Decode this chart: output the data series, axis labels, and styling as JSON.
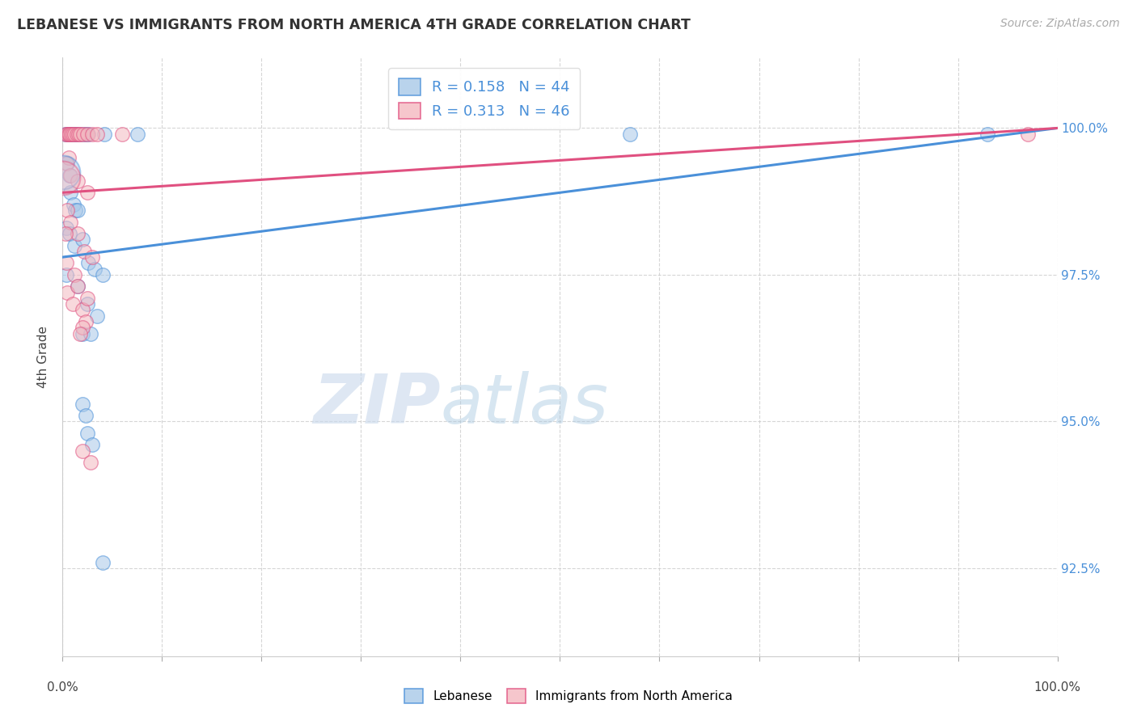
{
  "title": "LEBANESE VS IMMIGRANTS FROM NORTH AMERICA 4TH GRADE CORRELATION CHART",
  "source": "Source: ZipAtlas.com",
  "ylabel": "4th Grade",
  "right_yticks": [
    100.0,
    97.5,
    95.0,
    92.5
  ],
  "right_ytick_labels": [
    "100.0%",
    "97.5%",
    "95.0%",
    "92.5%"
  ],
  "xlim": [
    0.0,
    100.0
  ],
  "ylim": [
    91.0,
    101.2
  ],
  "blue_color": "#a8c8e8",
  "pink_color": "#f4b8c0",
  "blue_line_color": "#4a90d9",
  "pink_line_color": "#e05080",
  "legend_blue_r": "R = 0.158",
  "legend_blue_n": "N = 44",
  "legend_pink_r": "R = 0.313",
  "legend_pink_n": "N = 46",
  "watermark_zip": "ZIP",
  "watermark_atlas": "atlas",
  "blue_line_y_start": 97.8,
  "blue_line_y_end": 100.0,
  "pink_line_y_start": 98.9,
  "pink_line_y_end": 100.0,
  "blue_scatter": [
    [
      0.3,
      99.9
    ],
    [
      0.5,
      99.9
    ],
    [
      0.6,
      99.9
    ],
    [
      0.8,
      99.9
    ],
    [
      0.9,
      99.9
    ],
    [
      1.0,
      99.9
    ],
    [
      1.1,
      99.9
    ],
    [
      1.2,
      99.9
    ],
    [
      1.4,
      99.9
    ],
    [
      1.6,
      99.9
    ],
    [
      2.0,
      99.9
    ],
    [
      2.3,
      99.9
    ],
    [
      2.6,
      99.9
    ],
    [
      4.2,
      99.9
    ],
    [
      7.5,
      99.9
    ],
    [
      0.5,
      99.4
    ],
    [
      0.7,
      99.2
    ],
    [
      0.8,
      98.9
    ],
    [
      1.1,
      98.7
    ],
    [
      1.3,
      98.6
    ],
    [
      1.5,
      98.6
    ],
    [
      0.4,
      98.3
    ],
    [
      0.7,
      98.2
    ],
    [
      1.2,
      98.0
    ],
    [
      2.0,
      98.1
    ],
    [
      2.6,
      97.7
    ],
    [
      3.2,
      97.6
    ],
    [
      4.0,
      97.5
    ],
    [
      0.4,
      97.5
    ],
    [
      1.5,
      97.3
    ],
    [
      2.5,
      97.0
    ],
    [
      3.5,
      96.8
    ],
    [
      2.0,
      96.5
    ],
    [
      2.8,
      96.5
    ],
    [
      2.0,
      95.3
    ],
    [
      2.3,
      95.1
    ],
    [
      2.5,
      94.8
    ],
    [
      3.0,
      94.6
    ],
    [
      4.0,
      92.6
    ],
    [
      57.0,
      99.9
    ],
    [
      93.0,
      99.9
    ]
  ],
  "pink_scatter": [
    [
      0.3,
      99.9
    ],
    [
      0.5,
      99.9
    ],
    [
      0.6,
      99.9
    ],
    [
      0.7,
      99.9
    ],
    [
      0.9,
      99.9
    ],
    [
      1.0,
      99.9
    ],
    [
      1.2,
      99.9
    ],
    [
      1.4,
      99.9
    ],
    [
      1.6,
      99.9
    ],
    [
      1.8,
      99.9
    ],
    [
      2.1,
      99.9
    ],
    [
      2.5,
      99.9
    ],
    [
      3.0,
      99.9
    ],
    [
      3.5,
      99.9
    ],
    [
      0.35,
      99.4
    ],
    [
      0.8,
      99.2
    ],
    [
      1.5,
      99.1
    ],
    [
      2.5,
      98.9
    ],
    [
      0.5,
      98.6
    ],
    [
      0.8,
      98.4
    ],
    [
      1.5,
      98.2
    ],
    [
      2.2,
      97.9
    ],
    [
      0.4,
      97.7
    ],
    [
      1.2,
      97.5
    ],
    [
      0.5,
      97.2
    ],
    [
      1.0,
      97.0
    ],
    [
      2.0,
      96.9
    ],
    [
      2.3,
      96.7
    ],
    [
      2.0,
      96.6
    ],
    [
      1.8,
      96.5
    ],
    [
      2.0,
      94.5
    ],
    [
      2.8,
      94.3
    ],
    [
      1.5,
      97.3
    ],
    [
      2.5,
      97.1
    ],
    [
      3.0,
      97.8
    ],
    [
      0.3,
      98.2
    ],
    [
      0.6,
      99.5
    ],
    [
      6.0,
      99.9
    ],
    [
      97.0,
      99.9
    ]
  ],
  "large_blue": [
    0.05,
    99.25
  ],
  "large_pink": [
    0.08,
    99.15
  ]
}
